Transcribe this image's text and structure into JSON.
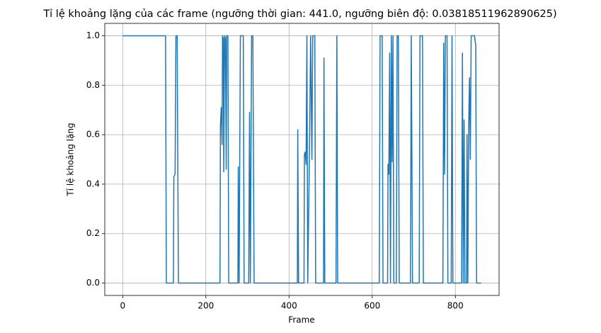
{
  "chart_data": {
    "type": "line",
    "title": "Tỉ lệ khoảng lặng của các frame (ngưỡng thời gian: 441.0, ngưỡng biên độ: 0.03818511962890625)",
    "xlabel": "Frame",
    "ylabel": "Tỉ lệ khoảng lặng",
    "color": "#1f77b4",
    "grid": true,
    "x": [
      0,
      103,
      105,
      122,
      123,
      126,
      128,
      131,
      134,
      234,
      235,
      237,
      239,
      240,
      242,
      243,
      245,
      247,
      249,
      250,
      253,
      255,
      277,
      278,
      280,
      283,
      290,
      292,
      303,
      305,
      307,
      310,
      313,
      316,
      420,
      421,
      423,
      436,
      437,
      439,
      441,
      443,
      445,
      449,
      452,
      455,
      457,
      462,
      464,
      483,
      484,
      486,
      513,
      515,
      517,
      617,
      619,
      624,
      626,
      637,
      638,
      640,
      642,
      644,
      646,
      648,
      650,
      652,
      658,
      660,
      663,
      665,
      692,
      694,
      697,
      713,
      715,
      721,
      723,
      770,
      772,
      774,
      776,
      780,
      782,
      790,
      792,
      794,
      815,
      817,
      819,
      821,
      823,
      827,
      828,
      830,
      832,
      834,
      836,
      838,
      846,
      849,
      851,
      862
    ],
    "values": [
      1,
      1,
      0,
      0,
      0.43,
      0.44,
      1,
      1,
      0,
      0,
      0.64,
      0.71,
      0.56,
      1,
      0.99,
      0.45,
      1,
      0.99,
      0.46,
      1,
      1,
      0,
      0,
      0.47,
      0,
      1,
      1,
      0,
      0,
      0.69,
      0,
      1,
      1,
      0,
      0,
      0.62,
      0,
      0,
      0.52,
      0.53,
      0.48,
      1,
      0,
      0.51,
      1,
      0.5,
      1,
      1,
      0,
      0,
      0.91,
      0,
      0,
      1,
      0,
      0,
      1,
      1,
      0,
      0,
      0.48,
      0.44,
      0.93,
      0,
      1,
      0.49,
      1,
      0,
      0,
      1,
      1,
      0,
      0,
      1,
      0,
      0,
      1,
      1,
      0,
      0,
      0.97,
      0.44,
      1,
      1,
      0,
      0,
      1,
      0,
      0,
      0.93,
      0,
      0.66,
      0,
      0,
      0.6,
      0,
      0.63,
      0.83,
      0.5,
      1,
      1,
      0.96,
      0,
      0
    ],
    "xlim": [
      -43.1,
      905.1
    ],
    "ylim": [
      -0.05,
      1.05
    ],
    "xticks": [
      0,
      200,
      400,
      600,
      800
    ],
    "yticks": [
      {
        "value": 0,
        "label": "0.0"
      },
      {
        "value": 0.2,
        "label": "0.2"
      },
      {
        "value": 0.4,
        "label": "0.4"
      },
      {
        "value": 0.6,
        "label": "0.6"
      },
      {
        "value": 0.8,
        "label": "0.8"
      },
      {
        "value": 1,
        "label": "1.0"
      }
    ]
  }
}
